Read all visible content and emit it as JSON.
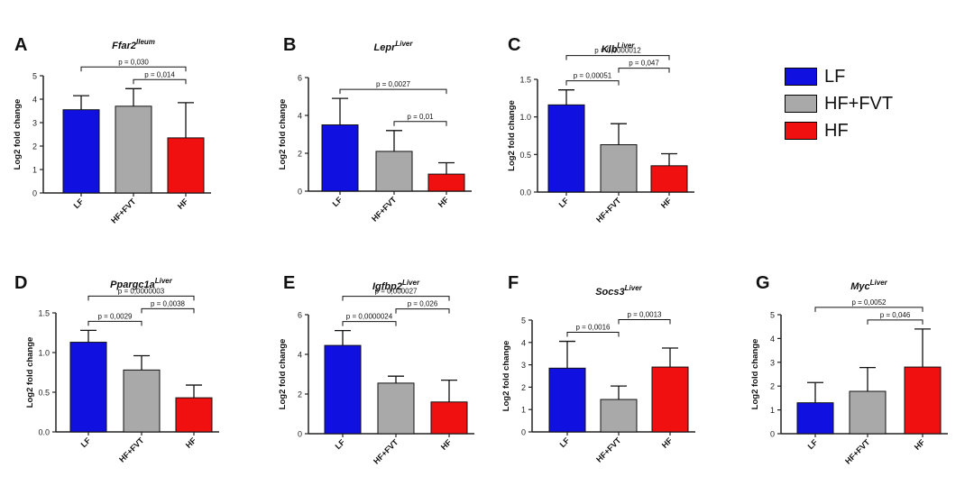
{
  "legend": [
    {
      "label": "LF",
      "color": "#1010e0"
    },
    {
      "label": "HF+FVT",
      "color": "#a9a9a9"
    },
    {
      "label": "HF",
      "color": "#f01010"
    }
  ],
  "colors": {
    "LF": "#1010e0",
    "HF+FVT": "#a9a9a9",
    "HF": "#f01010"
  },
  "chart_data": [
    {
      "type": "bar",
      "panel": "A",
      "gene": "Ffar2",
      "tissue": "Ileum",
      "categories": [
        "LF",
        "HF+FVT",
        "HF"
      ],
      "values": [
        3.55,
        3.7,
        2.35
      ],
      "errors": [
        0.6,
        0.75,
        1.5
      ],
      "ylabel": "Log2 fold change",
      "ylim": [
        0,
        5
      ],
      "yticks": [
        0,
        1,
        2,
        3,
        4,
        5
      ],
      "ytick_labels": [
        "0",
        "1",
        "2",
        "3",
        "4",
        "5"
      ],
      "comparisons": [
        {
          "from": 0,
          "to": 2,
          "label": "p = 0,030"
        },
        {
          "from": 1,
          "to": 2,
          "label": "p = 0,014"
        }
      ]
    },
    {
      "type": "bar",
      "panel": "B",
      "gene": "Lepr",
      "tissue": "Liver",
      "categories": [
        "LF",
        "HF+FVT",
        "HF"
      ],
      "values": [
        3.5,
        2.1,
        0.9
      ],
      "errors": [
        1.4,
        1.1,
        0.6
      ],
      "ylabel": "Log2 fold change",
      "ylim": [
        0,
        6
      ],
      "yticks": [
        0,
        2,
        4,
        6
      ],
      "ytick_labels": [
        "0",
        "2",
        "4",
        "6"
      ],
      "comparisons": [
        {
          "from": 0,
          "to": 2,
          "label": "p = 0,0027"
        },
        {
          "from": 1,
          "to": 2,
          "label": "p = 0,01"
        }
      ]
    },
    {
      "type": "bar",
      "panel": "C",
      "gene": "Klb",
      "tissue": "Liver",
      "categories": [
        "LF",
        "HF+FVT",
        "HF"
      ],
      "values": [
        1.16,
        0.63,
        0.35
      ],
      "errors": [
        0.2,
        0.28,
        0.16
      ],
      "ylabel": "Log2 fold change",
      "ylim": [
        0,
        1.5
      ],
      "yticks": [
        0,
        0.5,
        1.0,
        1.5
      ],
      "ytick_labels": [
        "0.0",
        "0.5",
        "1.0",
        "1.5"
      ],
      "comparisons": [
        {
          "from": 0,
          "to": 2,
          "label": "p = 0,0000012"
        },
        {
          "from": 0,
          "to": 1,
          "label": "p = 0,00051"
        },
        {
          "from": 1,
          "to": 2,
          "label": "p = 0,047"
        }
      ]
    },
    {
      "type": "bar",
      "panel": "D",
      "gene": "Ppargc1a",
      "tissue": "Liver",
      "categories": [
        "LF",
        "HF+FVT",
        "HF"
      ],
      "values": [
        1.13,
        0.78,
        0.43
      ],
      "errors": [
        0.15,
        0.18,
        0.16
      ],
      "ylabel": "Log2 fold change",
      "ylim": [
        0,
        1.5
      ],
      "yticks": [
        0,
        0.5,
        1.0,
        1.5
      ],
      "ytick_labels": [
        "0.0",
        "0.5",
        "1.0",
        "1.5"
      ],
      "comparisons": [
        {
          "from": 0,
          "to": 2,
          "label": "p = 0,0000003"
        },
        {
          "from": 0,
          "to": 1,
          "label": "p = 0,0029"
        },
        {
          "from": 1,
          "to": 2,
          "label": "p = 0,0038"
        }
      ]
    },
    {
      "type": "bar",
      "panel": "E",
      "gene": "Igfbp2",
      "tissue": "Liver",
      "categories": [
        "LF",
        "HF+FVT",
        "HF"
      ],
      "values": [
        4.45,
        2.55,
        1.6
      ],
      "errors": [
        0.75,
        0.35,
        1.1
      ],
      "ylabel": "Log2 fold change",
      "ylim": [
        0,
        6
      ],
      "yticks": [
        0,
        2,
        4,
        6
      ],
      "ytick_labels": [
        "0",
        "2",
        "4",
        "6"
      ],
      "comparisons": [
        {
          "from": 0,
          "to": 2,
          "label": "p = 0,000027"
        },
        {
          "from": 0,
          "to": 1,
          "label": "p = 0,0000024"
        },
        {
          "from": 1,
          "to": 2,
          "label": "p = 0,026"
        }
      ]
    },
    {
      "type": "bar",
      "panel": "F",
      "gene": "Socs3",
      "tissue": "Liver",
      "categories": [
        "LF",
        "HF+FVT",
        "HF"
      ],
      "values": [
        2.85,
        1.45,
        2.9
      ],
      "errors": [
        1.2,
        0.6,
        0.85
      ],
      "ylabel": "Log2 fold change",
      "ylim": [
        0,
        5
      ],
      "yticks": [
        0,
        1,
        2,
        3,
        4,
        5
      ],
      "ytick_labels": [
        "0",
        "1",
        "2",
        "3",
        "4",
        "5"
      ],
      "comparisons": [
        {
          "from": 0,
          "to": 1,
          "label": "p = 0,0016"
        },
        {
          "from": 1,
          "to": 2,
          "label": "p = 0,0013"
        }
      ]
    },
    {
      "type": "bar",
      "panel": "G",
      "gene": "Myc",
      "tissue": "Liver",
      "categories": [
        "LF",
        "HF+FVT",
        "HF"
      ],
      "values": [
        1.3,
        1.78,
        2.8
      ],
      "errors": [
        0.85,
        1.0,
        1.6
      ],
      "ylabel": "Log2 fold change",
      "ylim": [
        0,
        5
      ],
      "yticks": [
        0,
        1,
        2,
        3,
        4,
        5
      ],
      "ytick_labels": [
        "0",
        "1",
        "2",
        "3",
        "4",
        "5"
      ],
      "comparisons": [
        {
          "from": 0,
          "to": 2,
          "label": "p = 0,0052"
        },
        {
          "from": 1,
          "to": 2,
          "label": "p = 0,046"
        }
      ]
    }
  ]
}
